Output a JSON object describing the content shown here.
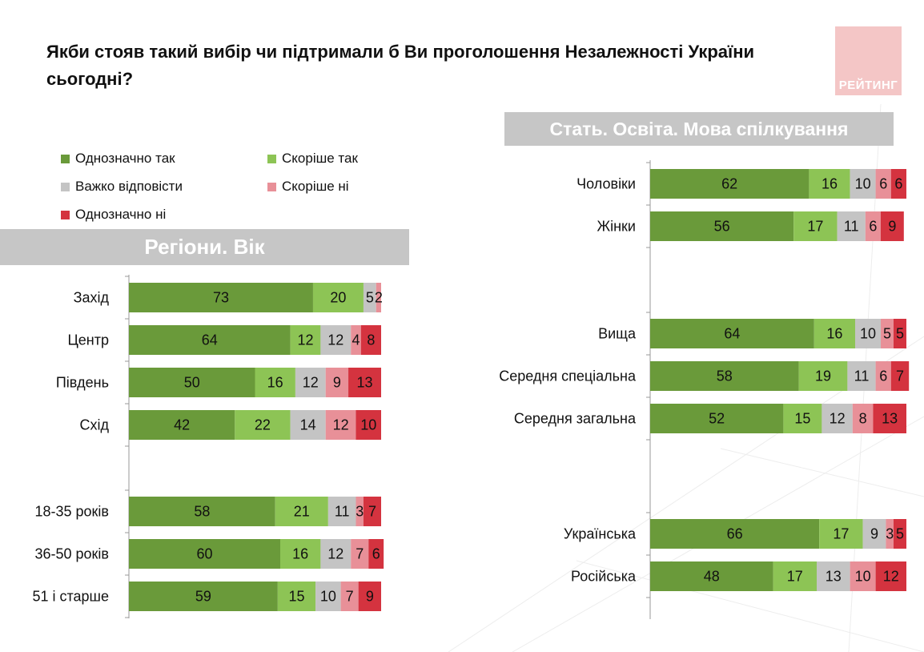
{
  "title": "Якби стояв такий вибір чи підтримали б Ви проголошення Незалежності України сьогодні?",
  "logo_text": "РЕЙТИНГ",
  "legend": [
    {
      "label": "Однозначно так",
      "color": "#6a9a3a"
    },
    {
      "label": "Скоріше так",
      "color": "#8dc455"
    },
    {
      "label": "Важко відповісти",
      "color": "#c4c4c4"
    },
    {
      "label": "Скоріше ні",
      "color": "#e89098"
    },
    {
      "label": "Однозначно ні",
      "color": "#d4333f"
    }
  ],
  "banners": {
    "left": "Регіони. Вік",
    "right": "Стать. Освіта. Мова спілкування"
  },
  "chart_data": [
    {
      "type": "bar",
      "orientation": "horizontal",
      "stacked": true,
      "series_names": [
        "Однозначно так",
        "Скоріше так",
        "Важко відповісти",
        "Скоріше ні",
        "Однозначно ні"
      ],
      "groups": [
        {
          "categories": [
            "Захід",
            "Центр",
            "Південь",
            "Схід"
          ],
          "series": [
            {
              "name": "Однозначно так",
              "values": [
                73,
                64,
                50,
                42
              ]
            },
            {
              "name": "Скоріше так",
              "values": [
                20,
                12,
                16,
                22
              ]
            },
            {
              "name": "Важко відповісти",
              "values": [
                5,
                12,
                12,
                14
              ]
            },
            {
              "name": "Скоріше ні",
              "values": [
                2,
                4,
                9,
                12
              ]
            },
            {
              "name": "Однозначно ні",
              "values": [
                0,
                8,
                13,
                10
              ]
            }
          ]
        },
        {
          "categories": [
            "18-35 років",
            "36-50 років",
            "51 і старше"
          ],
          "series": [
            {
              "name": "Однозначно так",
              "values": [
                58,
                60,
                59
              ]
            },
            {
              "name": "Скоріше так",
              "values": [
                21,
                16,
                15
              ]
            },
            {
              "name": "Важко відповісти",
              "values": [
                11,
                12,
                10
              ]
            },
            {
              "name": "Скоріше ні",
              "values": [
                3,
                7,
                7
              ]
            },
            {
              "name": "Однозначно ні",
              "values": [
                7,
                6,
                9
              ]
            }
          ]
        }
      ]
    },
    {
      "type": "bar",
      "orientation": "horizontal",
      "stacked": true,
      "series_names": [
        "Однозначно так",
        "Скоріше так",
        "Важко відповісти",
        "Скоріше ні",
        "Однозначно ні"
      ],
      "groups": [
        {
          "categories": [
            "Чоловіки",
            "Жінки"
          ],
          "series": [
            {
              "name": "Однозначно так",
              "values": [
                62,
                56
              ]
            },
            {
              "name": "Скоріше так",
              "values": [
                16,
                17
              ]
            },
            {
              "name": "Важко відповісти",
              "values": [
                10,
                11
              ]
            },
            {
              "name": "Скоріше ні",
              "values": [
                6,
                6
              ]
            },
            {
              "name": "Однозначно ні",
              "values": [
                6,
                9
              ]
            }
          ]
        },
        {
          "categories": [
            "Вища",
            "Середня спеціальна",
            "Середня загальна"
          ],
          "series": [
            {
              "name": "Однозначно так",
              "values": [
                64,
                58,
                52
              ]
            },
            {
              "name": "Скоріше так",
              "values": [
                16,
                19,
                15
              ]
            },
            {
              "name": "Важко відповісти",
              "values": [
                10,
                11,
                12
              ]
            },
            {
              "name": "Скоріше ні",
              "values": [
                5,
                6,
                8
              ]
            },
            {
              "name": "Однозначно ні",
              "values": [
                5,
                7,
                13
              ]
            }
          ]
        },
        {
          "categories": [
            "Українська",
            "Російська"
          ],
          "series": [
            {
              "name": "Однозначно так",
              "values": [
                66,
                48
              ]
            },
            {
              "name": "Скоріше так",
              "values": [
                17,
                17
              ]
            },
            {
              "name": "Важко відповісти",
              "values": [
                9,
                13
              ]
            },
            {
              "name": "Скоріше ні",
              "values": [
                3,
                10
              ]
            },
            {
              "name": "Однозначно ні",
              "values": [
                5,
                12
              ]
            }
          ]
        }
      ]
    }
  ]
}
